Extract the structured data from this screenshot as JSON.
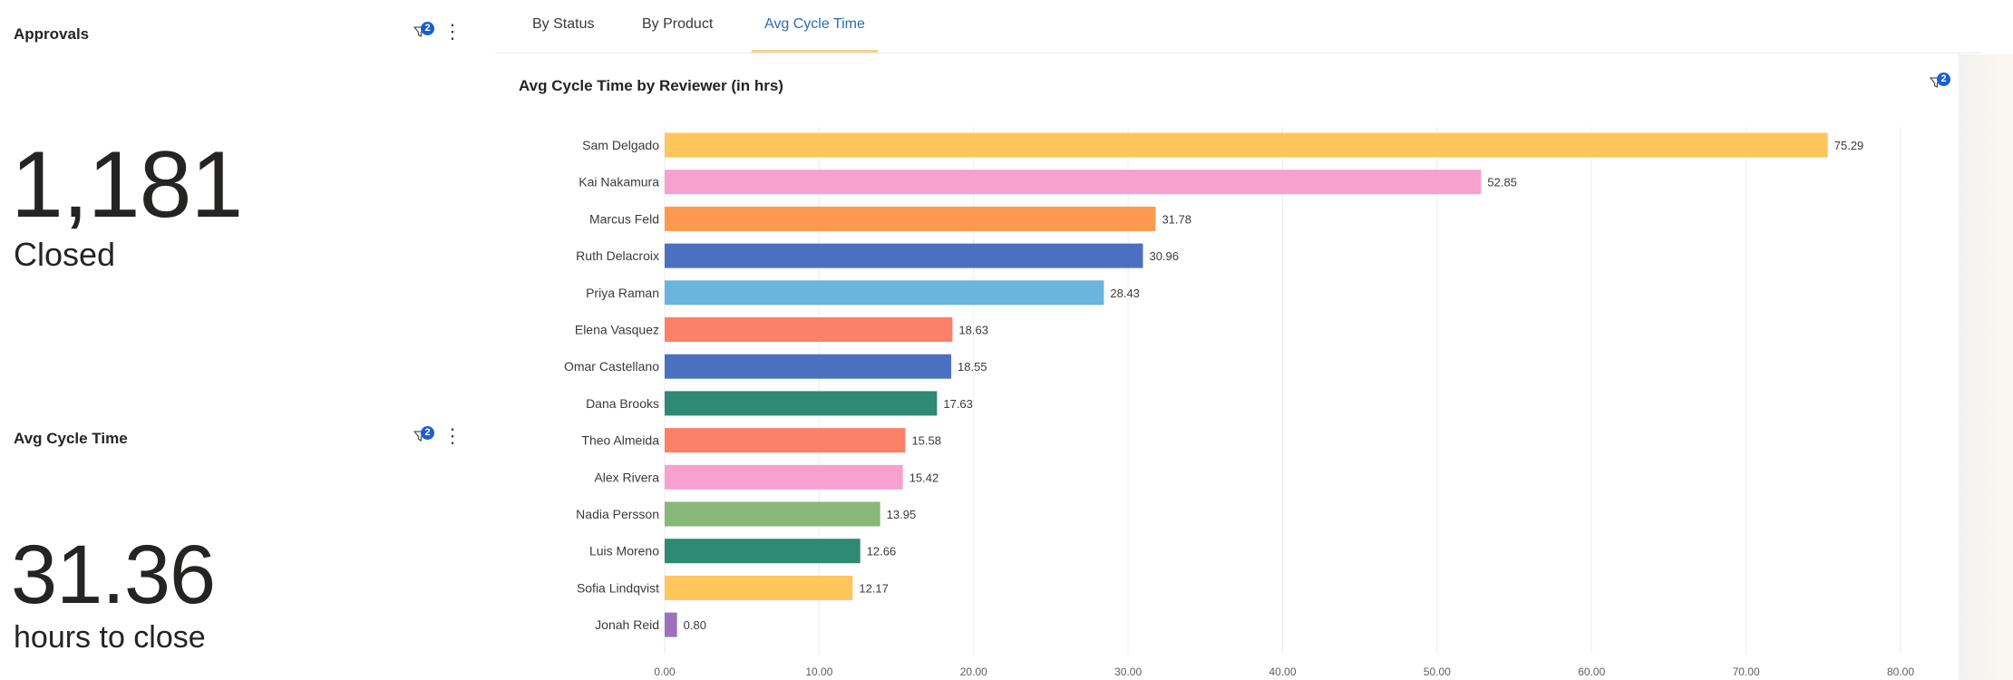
{
  "approvals_card": {
    "title": "Approvals",
    "filter_count": "2",
    "value": "1,181",
    "label": "Closed"
  },
  "cycle_card": {
    "title": "Avg Cycle Time",
    "filter_count": "2",
    "value": "31.36",
    "label": "hours to close"
  },
  "tabs": [
    {
      "label": "By Status",
      "active": false
    },
    {
      "label": "By Product",
      "active": false
    },
    {
      "label": "Avg Cycle Time",
      "active": true
    }
  ],
  "chart_header": {
    "title": "Avg Cycle Time by Reviewer (in hrs)",
    "filter_count": "2"
  },
  "chart_data": {
    "type": "bar",
    "orientation": "horizontal",
    "title": "Avg Cycle Time by Reviewer (in hrs)",
    "categories": [
      "Sam Delgado",
      "Kai Nakamura",
      "Marcus Feld",
      "Ruth Delacroix",
      "Priya Raman",
      "Elena Vasquez",
      "Omar Castellano",
      "Dana Brooks",
      "Theo Almeida",
      "Alex Rivera",
      "Nadia Persson",
      "Luis Moreno",
      "Sofia Lindqvist",
      "Jonah Reid"
    ],
    "values": [
      75.29,
      52.85,
      31.78,
      30.96,
      28.43,
      18.63,
      18.55,
      17.63,
      15.58,
      15.42,
      13.95,
      12.66,
      12.17,
      0.8
    ],
    "value_labels": [
      "75.29",
      "52.85",
      "31.78",
      "30.96",
      "28.43",
      "18.63",
      "18.55",
      "17.63",
      "15.58",
      "15.42",
      "13.95",
      "12.66",
      "12.17",
      "0.80"
    ],
    "colors": [
      "#ffc65c",
      "#f7a1cf",
      "#fd9a50",
      "#4c70c0",
      "#6ab4de",
      "#fa8068",
      "#4c70c0",
      "#2e8a72",
      "#fa8068",
      "#f7a1cf",
      "#88b878",
      "#2e8a72",
      "#ffc65c",
      "#9c72bc"
    ],
    "x_ticks": [
      "0.00",
      "10.00",
      "20.00",
      "30.00",
      "40.00",
      "50.00",
      "60.00",
      "70.00",
      "80.00"
    ],
    "xlim": [
      0,
      80
    ],
    "grid": true
  }
}
